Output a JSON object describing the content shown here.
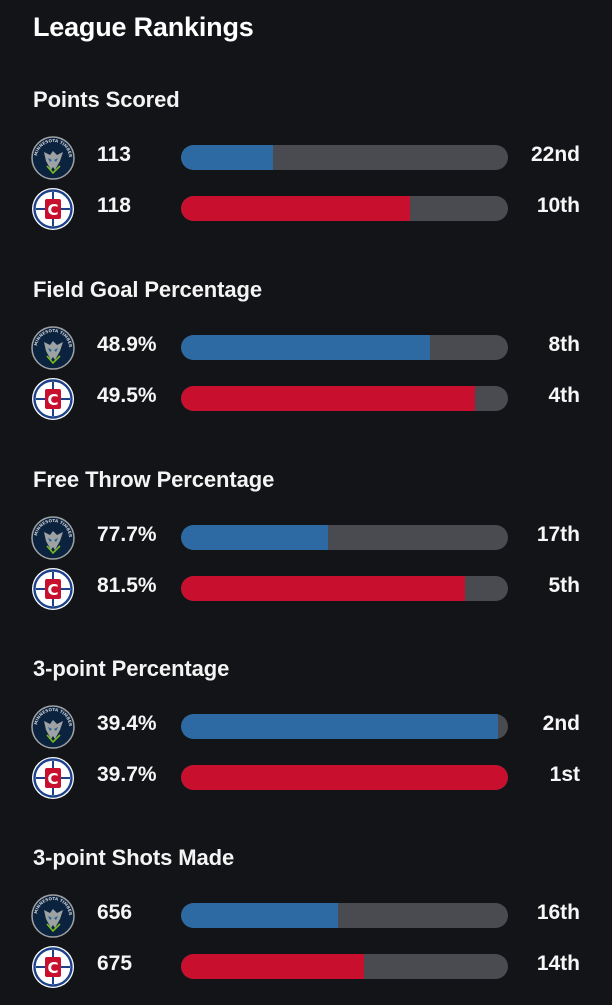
{
  "title": "League Rankings",
  "colors": {
    "team1": "#2d6aa3",
    "team2": "#c8102e",
    "track": "#4a4b50",
    "background": "#131417"
  },
  "teams": [
    {
      "name": "Minnesota Timberwolves",
      "logo_text": "MINNESOTA TIMBERWOLVES",
      "logo_icon": "timberwolves-logo-icon"
    },
    {
      "name": "LA Clippers",
      "logo_text": "C",
      "logo_icon": "clippers-logo-icon"
    }
  ],
  "stats": [
    {
      "label": "Points Scored",
      "rows": [
        {
          "value": "113",
          "rank": "22nd",
          "fill": 0.28
        },
        {
          "value": "118",
          "rank": "10th",
          "fill": 0.7
        }
      ]
    },
    {
      "label": "Field Goal Percentage",
      "rows": [
        {
          "value": "48.9%",
          "rank": "8th",
          "fill": 0.76
        },
        {
          "value": "49.5%",
          "rank": "4th",
          "fill": 0.9
        }
      ]
    },
    {
      "label": "Free Throw Percentage",
      "rows": [
        {
          "value": "77.7%",
          "rank": "17th",
          "fill": 0.45
        },
        {
          "value": "81.5%",
          "rank": "5th",
          "fill": 0.87
        }
      ]
    },
    {
      "label": "3-point Percentage",
      "rows": [
        {
          "value": "39.4%",
          "rank": "2nd",
          "fill": 0.97
        },
        {
          "value": "39.7%",
          "rank": "1st",
          "fill": 1.0
        }
      ]
    },
    {
      "label": "3-point Shots Made",
      "rows": [
        {
          "value": "656",
          "rank": "16th",
          "fill": 0.48
        },
        {
          "value": "675",
          "rank": "14th",
          "fill": 0.56
        }
      ]
    }
  ]
}
